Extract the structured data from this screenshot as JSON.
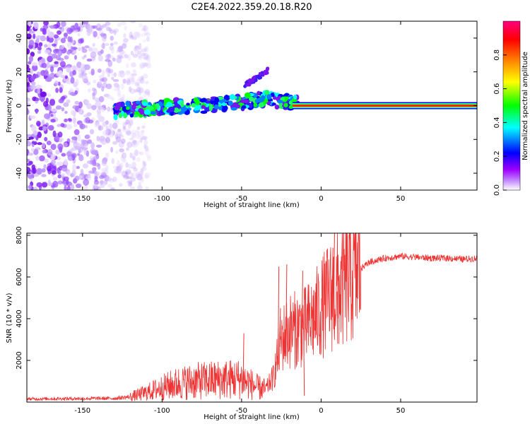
{
  "title": "C2E4.2022.359.20.18.R20",
  "chart_data": [
    {
      "type": "heatmap",
      "name": "spectrogram",
      "xlabel": "Height of straight line (km)",
      "ylabel": "Frequency (Hz)",
      "xlim": [
        -185,
        98
      ],
      "ylim": [
        -50,
        50
      ],
      "xticks": [
        -150,
        -100,
        -50,
        0,
        50
      ],
      "xtick_labels": [
        "-150",
        "-100",
        "-50",
        "0",
        "50"
      ],
      "yticks": [
        -40,
        -20,
        0,
        20,
        40
      ],
      "ytick_labels": [
        "-40",
        "-20",
        "0",
        "20",
        "40"
      ],
      "description_series": {
        "noise_region_km": [
          -185,
          -108
        ],
        "ridge": {
          "x": [
            -130,
            -100,
            -75,
            -50,
            -35,
            -20,
            -10,
            0,
            50,
            95
          ],
          "freq": [
            -3,
            -1,
            0,
            2,
            4,
            2,
            0,
            -1,
            0,
            0
          ]
        },
        "branch": {
          "x": [
            -48,
            -33
          ],
          "freq": [
            12,
            21
          ]
        }
      },
      "colorbar": {
        "label": "Normalized spectral amplitude",
        "range": [
          0,
          1
        ],
        "ticks": [
          0.0,
          0.2,
          0.4,
          0.6,
          0.8
        ],
        "tick_labels": [
          "0.0",
          "0.2",
          "0.4",
          "0.6",
          "0.8"
        ],
        "colors": [
          "#ffffff",
          "#a000ff",
          "#0000ff",
          "#00ffff",
          "#00ff00",
          "#ffff00",
          "#ff8000",
          "#ff0000",
          "#ff0080"
        ]
      }
    },
    {
      "type": "line",
      "name": "snr",
      "xlabel": "Height of straight line (km)",
      "ylabel": "SNR (10 * v/v)",
      "xlim": [
        -185,
        98
      ],
      "ylim": [
        0,
        8100
      ],
      "xticks": [
        -150,
        -100,
        -50,
        0,
        50
      ],
      "xtick_labels": [
        "-150",
        "-100",
        "-50",
        "0",
        "50"
      ],
      "yticks": [
        2000,
        4000,
        6000,
        8000
      ],
      "ytick_labels": [
        "2000",
        "4000",
        "6000",
        "8000"
      ],
      "color": "#ee3333",
      "series": [
        {
          "name": "SNR",
          "x": [
            -185,
            -170,
            -150,
            -130,
            -120,
            -110,
            -100,
            -90,
            -80,
            -70,
            -60,
            -50,
            -45,
            -40,
            -35,
            -30,
            -25,
            -20,
            -15,
            -10,
            -5,
            0,
            5,
            10,
            15,
            20,
            25,
            30,
            40,
            50,
            60,
            70,
            80,
            90,
            98
          ],
          "values": [
            150,
            160,
            170,
            180,
            250,
            450,
            700,
            900,
            1000,
            1050,
            1100,
            1100,
            900,
            700,
            600,
            1200,
            3000,
            3400,
            3500,
            3600,
            4000,
            4500,
            5000,
            5300,
            5600,
            6000,
            6400,
            6700,
            6900,
            7000,
            6950,
            6900,
            6900,
            6850,
            6900
          ]
        }
      ],
      "spikes": {
        "x": [
          -49,
          -27,
          -26,
          -22,
          -12,
          -11,
          8,
          7,
          10
        ],
        "values": [
          3300,
          6500,
          4500,
          6600,
          6300,
          300,
          8100,
          7400,
          2800
        ]
      }
    }
  ]
}
